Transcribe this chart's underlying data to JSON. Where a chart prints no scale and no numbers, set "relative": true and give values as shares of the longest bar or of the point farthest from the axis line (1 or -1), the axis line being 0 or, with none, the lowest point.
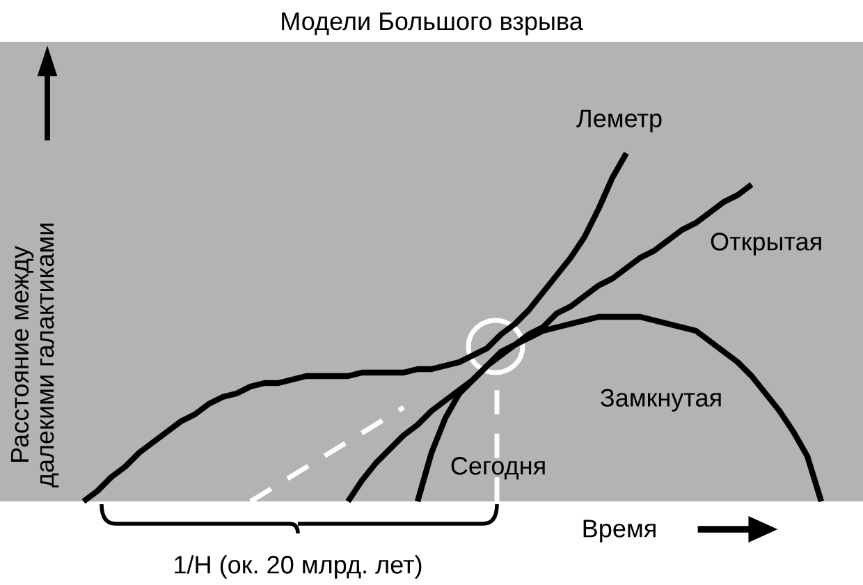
{
  "chart_data": {
    "type": "line",
    "title": "Модели Большого взрыва",
    "ylabel": "Расстояние между\nдалекими галактиками",
    "xlabel": "Время",
    "relative": true,
    "legend": false,
    "grid": false,
    "marker": "none",
    "categories": [
      null,
      null,
      null,
      null,
      null,
      null,
      null,
      null,
      null,
      null,
      null,
      null,
      null,
      null,
      null,
      null,
      null,
      null,
      null,
      null,
      null,
      null,
      null,
      null,
      null,
      null,
      null,
      null,
      null,
      null,
      null,
      null,
      null,
      null,
      null,
      null,
      null,
      null,
      null,
      null,
      null,
      null,
      null,
      null,
      null,
      null,
      null,
      null,
      null,
      null,
      null,
      null,
      null,
      null
    ],
    "series": [
      {
        "name": "Леметр",
        "color": "#000000",
        "line_style": "solid",
        "values": [
          0,
          0.03,
          0.07,
          0.1,
          0.14,
          0.17,
          0.2,
          0.23,
          0.25,
          0.28,
          0.3,
          0.31,
          0.33,
          0.34,
          0.34,
          0.35,
          0.36,
          0.36,
          0.36,
          0.36,
          0.37,
          0.37,
          0.37,
          0.37,
          0.38,
          0.38,
          0.39,
          0.4,
          0.42,
          0.44,
          0.48,
          0.51,
          0.55,
          0.6,
          0.65,
          0.7,
          0.76,
          0.84,
          0.93,
          1.0,
          null,
          null,
          null,
          null,
          null,
          null,
          null,
          null,
          null,
          null,
          null,
          null,
          null,
          null
        ]
      },
      {
        "name": "Открытая",
        "color": "#000000",
        "line_style": "solid",
        "values": [
          null,
          null,
          null,
          null,
          null,
          null,
          null,
          null,
          null,
          null,
          null,
          null,
          null,
          null,
          null,
          null,
          null,
          null,
          null,
          0,
          0.06,
          0.11,
          0.15,
          0.19,
          0.22,
          0.26,
          0.29,
          0.32,
          0.35,
          0.39,
          0.42,
          0.45,
          0.48,
          0.5,
          0.54,
          0.56,
          0.59,
          0.62,
          0.64,
          0.67,
          0.7,
          0.72,
          0.75,
          0.78,
          0.8,
          0.83,
          0.86,
          0.88,
          0.91,
          null,
          null,
          null,
          null,
          null
        ]
      },
      {
        "name": "Замкнутая",
        "color": "#000000",
        "line_style": "solid",
        "values": [
          null,
          null,
          null,
          null,
          null,
          null,
          null,
          null,
          null,
          null,
          null,
          null,
          null,
          null,
          null,
          null,
          null,
          null,
          null,
          null,
          null,
          null,
          null,
          null,
          0,
          0.14,
          0.24,
          0.31,
          0.35,
          0.39,
          0.43,
          0.45,
          0.47,
          0.49,
          0.5,
          0.51,
          0.52,
          0.53,
          0.53,
          0.53,
          0.53,
          0.52,
          0.51,
          0.5,
          0.49,
          0.46,
          0.43,
          0.4,
          0.36,
          0.31,
          0.26,
          0.2,
          0.13,
          0
        ]
      },
      {
        "color": "#ffffff",
        "line_style": "dashed",
        "values": [
          null,
          null,
          null,
          null,
          null,
          null,
          null,
          null,
          null,
          null,
          null,
          null,
          0,
          null,
          null,
          null,
          null,
          null,
          null,
          null,
          null,
          null,
          null,
          0.27,
          null,
          null,
          null,
          null,
          null,
          null,
          null,
          null,
          null,
          null,
          null,
          null,
          null,
          null,
          null,
          null,
          null,
          null,
          null,
          null,
          null,
          null,
          null,
          null,
          null,
          null,
          null,
          null,
          null,
          null
        ]
      }
    ],
    "annotations": [
      "1/H (ок. 20 млрд. лет)",
      "Сегодня"
    ]
  }
}
